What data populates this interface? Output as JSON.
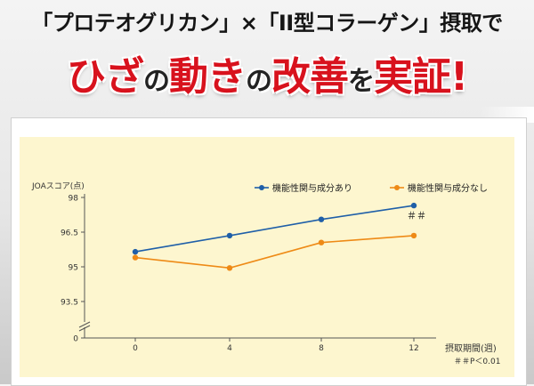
{
  "headline": {
    "top": "「プロテオグリカン」×「II型コラーゲン」摂取で",
    "main_part1": "ひざ",
    "main_part2": "の",
    "main_part3": "動き",
    "main_part4": "の",
    "main_part5": "改善",
    "main_part6": "を",
    "main_part7": "実証!"
  },
  "chart_data": {
    "type": "line",
    "ylabel": "JOAスコア(点)",
    "xlabel": "摂取期間(週)",
    "x": [
      0,
      4,
      8,
      12
    ],
    "xticks": [
      "0",
      "4",
      "8",
      "12"
    ],
    "yticks": [
      "98",
      "96.5",
      "95",
      "93.5",
      "0"
    ],
    "ylim": [
      92.5,
      98
    ],
    "y_axis_break": true,
    "series": [
      {
        "name": "機能性関与成分あり",
        "color": "#1f5fa8",
        "values": [
          95.65,
          96.35,
          97.05,
          97.65
        ]
      },
      {
        "name": "機能性関与成分なし",
        "color": "#ee8a16",
        "values": [
          95.4,
          94.95,
          96.05,
          96.35
        ]
      }
    ],
    "annotation": "＃＃",
    "footnote": "＃＃P＜0.01",
    "legend": "top-right",
    "grid": false
  },
  "colors": {
    "title_red": "#d8121d",
    "series_with": "#1f5fa8",
    "series_without": "#ee8a16",
    "chart_bg": "#fdf6cf"
  }
}
